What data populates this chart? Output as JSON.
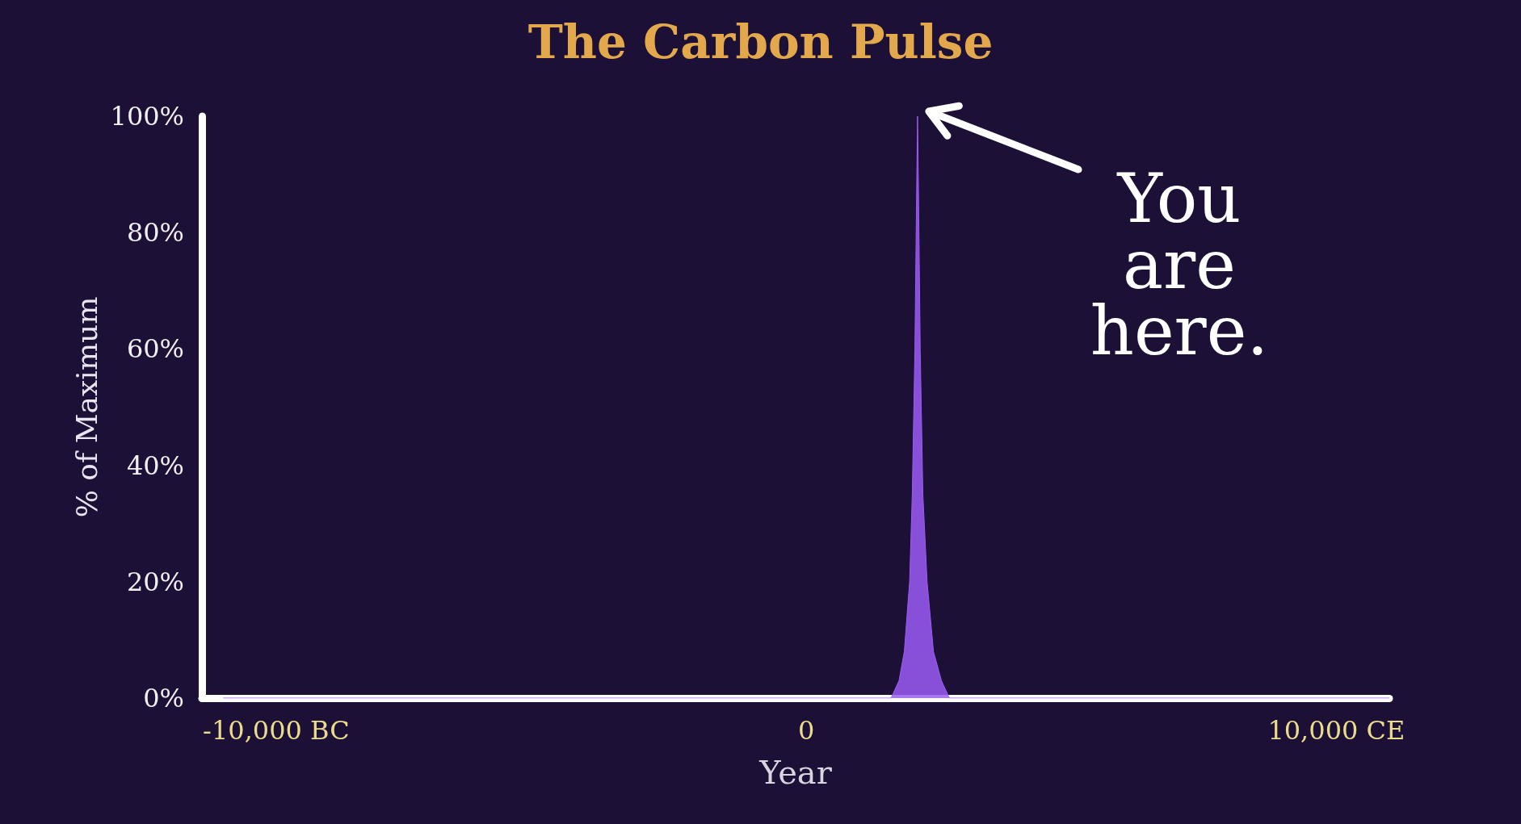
{
  "chart_data": {
    "type": "area",
    "title": "The Carbon Pulse",
    "xlabel": "Year",
    "ylabel": "% of Maximum",
    "x": [
      -11000,
      1600,
      1750,
      1850,
      1950,
      2000,
      2050,
      2080,
      2100,
      2120,
      2150,
      2200,
      2280,
      2400,
      2550,
      2700,
      11000
    ],
    "series": [
      {
        "color": "#9b5cf5",
        "values": [
          0,
          0,
          3,
          8,
          20,
          35,
          60,
          85,
          100,
          85,
          60,
          35,
          20,
          8,
          3,
          0,
          0
        ]
      }
    ],
    "xlim": [
      -11400,
      11000
    ],
    "xticks": [
      {
        "value": -10000,
        "label": "-10,000 BC"
      },
      0,
      {
        "value": 10000,
        "label": "10,000 CE"
      }
    ],
    "ylim": [
      0,
      100
    ],
    "yticks": [
      {
        "value": 0,
        "label": "0%"
      },
      {
        "value": 20,
        "label": "20%"
      },
      {
        "value": 40,
        "label": "40%"
      },
      {
        "value": 60,
        "label": "60%"
      },
      {
        "value": 80,
        "label": "80%"
      },
      {
        "value": 100,
        "label": "100%"
      }
    ],
    "annotations": [
      {
        "text": "You are here.",
        "x": 2100,
        "y": 100
      }
    ],
    "grid": false,
    "marker": "none"
  }
}
